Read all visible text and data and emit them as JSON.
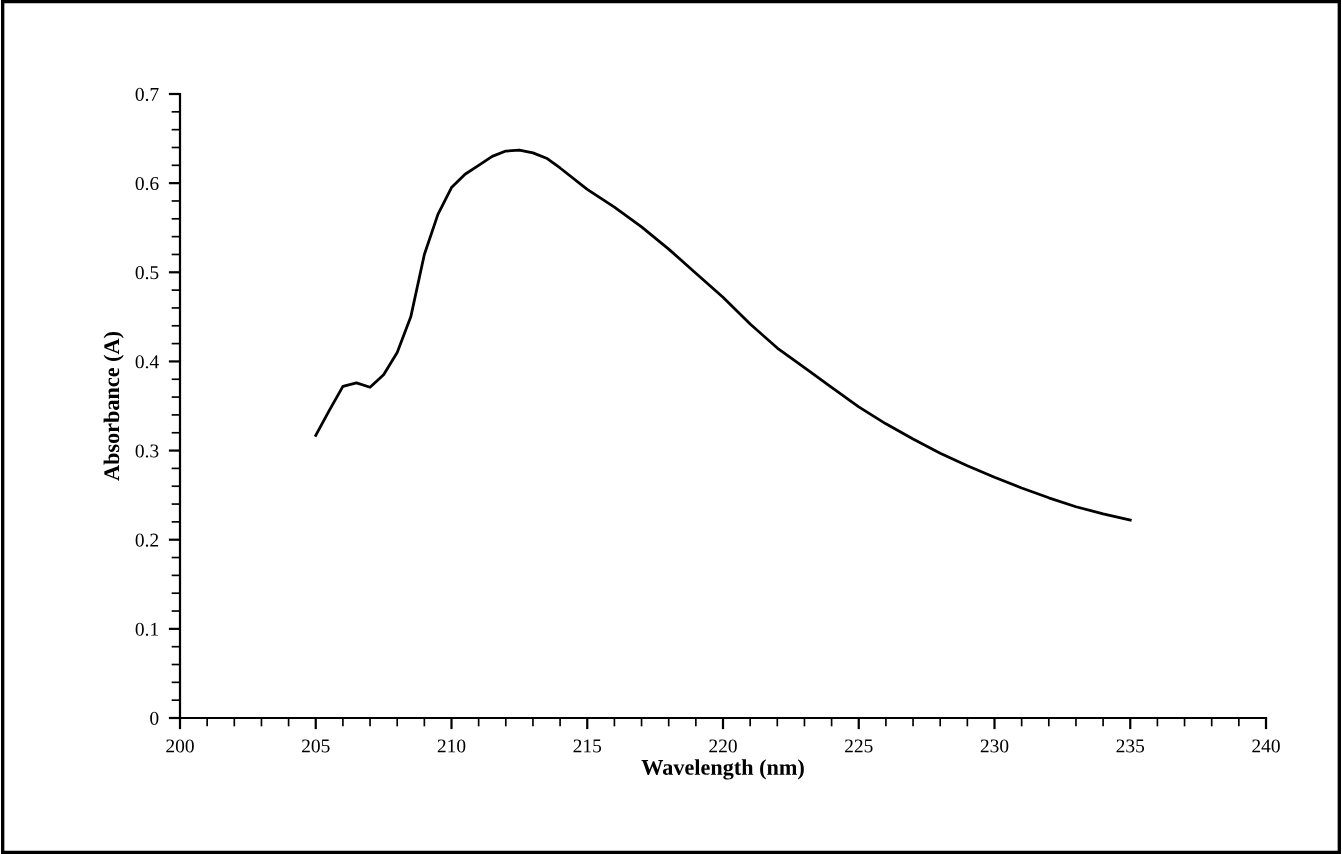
{
  "chart_data": {
    "type": "line",
    "xlabel": "Wavelength (nm)",
    "ylabel": "Absorbance (A)",
    "xlim": [
      200,
      240
    ],
    "xticks": [
      200,
      205,
      210,
      215,
      220,
      225,
      230,
      235,
      240
    ],
    "ylim": [
      0,
      0.7
    ],
    "yticks": [
      0,
      0.1,
      0.2,
      0.3,
      0.4,
      0.5,
      0.6,
      0.7
    ],
    "grid": false,
    "legend": false,
    "marker": "none",
    "line_style": "solid",
    "series": [
      {
        "color": "#000000",
        "x": [
          205,
          205.5,
          206,
          206.5,
          207,
          207.5,
          208,
          208.5,
          209,
          209.5,
          210,
          210.5,
          211,
          211.5,
          212,
          212.5,
          213,
          213.5,
          214,
          215,
          216,
          217,
          218,
          219,
          220,
          221,
          222,
          223,
          224,
          225,
          226,
          227,
          228,
          229,
          230,
          231,
          232,
          233,
          234,
          235
        ],
        "values": [
          0.317,
          0.345,
          0.372,
          0.376,
          0.371,
          0.385,
          0.41,
          0.45,
          0.52,
          0.565,
          0.595,
          0.61,
          0.62,
          0.63,
          0.636,
          0.637,
          0.634,
          0.628,
          0.617,
          0.593,
          0.573,
          0.551,
          0.526,
          0.499,
          0.472,
          0.442,
          0.415,
          0.393,
          0.371,
          0.349,
          0.33,
          0.313,
          0.297,
          0.283,
          0.27,
          0.258,
          0.247,
          0.237,
          0.229,
          0.222
        ]
      }
    ]
  }
}
